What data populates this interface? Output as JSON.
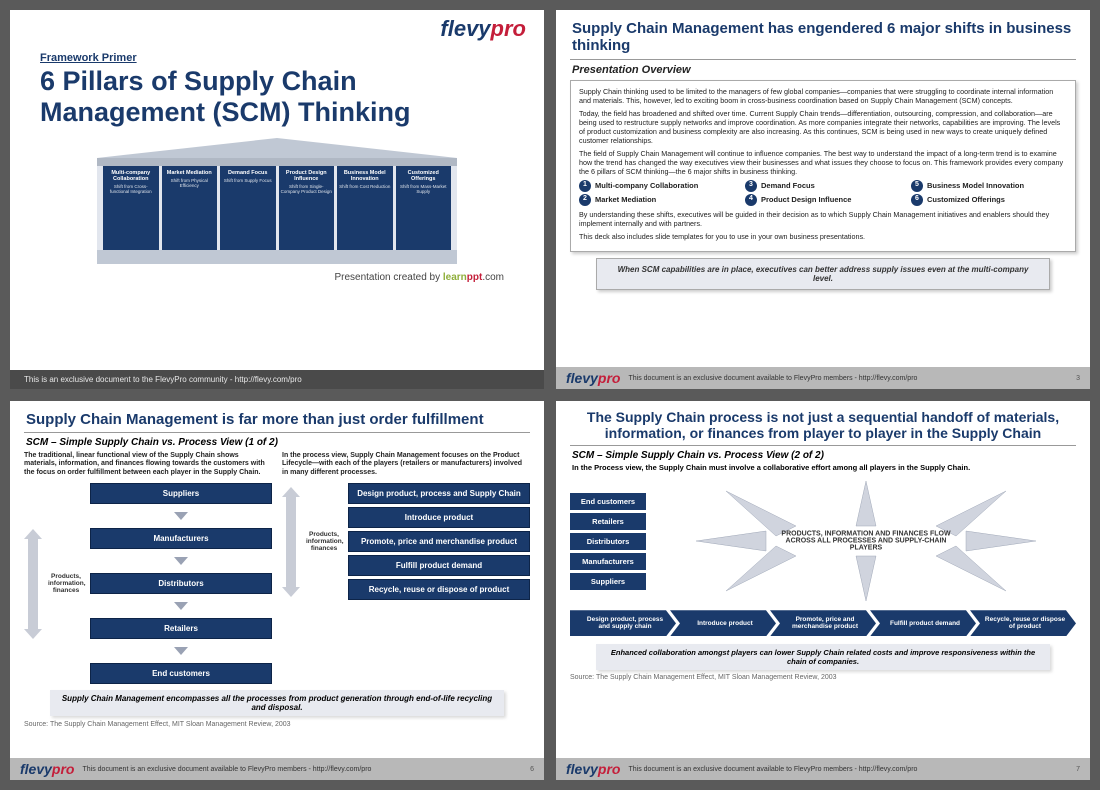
{
  "brand": {
    "flevy": "flevy",
    "pro": "pro",
    "learn": "learn",
    "ppt": "ppt",
    "com": ".com"
  },
  "colors": {
    "navy": "#1a3a6b",
    "red": "#c41e3a",
    "grey": "#5a5a5a",
    "ltgrey": "#c0c8d4",
    "callout": "#e8eaf0"
  },
  "slide1": {
    "primer": "Framework Primer",
    "title": "6 Pillars of Supply Chain Management (SCM) Thinking",
    "pillars": [
      {
        "t": "Multi-company Collaboration",
        "s": "Shift from Cross-functional Integration"
      },
      {
        "t": "Market Mediation",
        "s": "Shift from Physical Efficiency"
      },
      {
        "t": "Demand Focus",
        "s": "Shift from Supply Focus"
      },
      {
        "t": "Product Design Influence",
        "s": "Shift from Single-Company Product Design"
      },
      {
        "t": "Business Model Innovation",
        "s": "Shift from Cost Reduction"
      },
      {
        "t": "Customized Offerings",
        "s": "Shift from Mass-Market Supply"
      }
    ],
    "credit_pre": "Presentation created by ",
    "footer": "This is an exclusive document to the FlevyPro community - http://flevy.com/pro"
  },
  "slide2": {
    "title": "Supply Chain Management has engendered 6 major shifts in business thinking",
    "subtitle": "Presentation Overview",
    "p1": "Supply Chain thinking used to be limited to the managers of few global companies—companies that were struggling to coordinate internal information and materials.  This, however, led to exciting boom in cross-business coordination based on Supply Chain Management (SCM) concepts.",
    "p2": "Today, the field has broadened and shifted over time. Current Supply Chain trends—differentiation, outsourcing, compression, and collaboration—are being used to restructure supply networks and improve coordination.  As more companies integrate their networks, capabilities are improving. The levels of product customization and business complexity are also increasing.  As this continues, SCM is being used in new ways to create uniquely defined customer relationships.",
    "p3": "The field of Supply Chain Management will continue to influence companies. The best way to understand the impact of a long-term trend is to examine how the trend has changed the way executives view their businesses and what issues they choose to focus on.   This framework provides every company the 6 pillars of SCM thinking—the 6 major shifts in business thinking.",
    "list": [
      "Multi-company Collaboration",
      "Market Mediation",
      "Demand Focus",
      "Product Design Influence",
      "Business Model Innovation",
      "Customized Offerings"
    ],
    "p4": "By understanding these shifts, executives will be guided in their decision as to which Supply Chain Management initiatives and enablers should they implement internally and with partners.",
    "p5": "This deck also includes slide templates for you to use in your own business presentations.",
    "callout": "When SCM capabilities are in place, executives can better address supply issues even at the multi-company level.",
    "footer": "This document is an exclusive document available to FlevyPro members - http://flevy.com/pro",
    "page": "3"
  },
  "slide3": {
    "title": "Supply Chain Management is far more than just order fulfillment",
    "subtitle": "SCM – Simple Supply Chain vs. Process View (1 of 2)",
    "left_desc": "The traditional, linear functional view of the Supply Chain shows materials, information, and finances flowing towards the customers with the focus on order fulfillment between each player in the Supply Chain.",
    "right_desc": "In the process view, Supply Chain Management focuses on the Product Lifecycle—with each of the players (retailers or manufacturers) involved in many different processes.",
    "side_label": "Products, information, finances",
    "left_boxes": [
      "Suppliers",
      "Manufacturers",
      "Distributors",
      "Retailers",
      "End customers"
    ],
    "right_boxes": [
      "Design product, process and Supply Chain",
      "Introduce product",
      "Promote, price and merchandise product",
      "Fulfill product demand",
      "Recycle, reuse or dispose of product"
    ],
    "callout": "Supply Chain Management encompasses all the processes from product generation through end-of-life recycling and disposal.",
    "source": "Source: The Supply Chain Management Effect, MIT Sloan Management Review, 2003",
    "footer": "This document is an exclusive document available to FlevyPro members - http://flevy.com/pro",
    "page": "6"
  },
  "slide4": {
    "title": "The Supply Chain process is not just a sequential handoff of materials, information, or finances from player to player in the Supply Chain",
    "subtitle": "SCM – Simple Supply Chain vs. Process View (2 of 2)",
    "desc": "In the Process view, the Supply Chain must involve a collaborative effort among all players in the Supply Chain.",
    "left": [
      "End customers",
      "Retailers",
      "Distributors",
      "Manufacturers",
      "Suppliers"
    ],
    "center": "PRODUCTS, INFORMATION AND FINANCES FLOW ACROSS ALL PROCESSES AND SUPPLY-CHAIN PLAYERS",
    "chevrons": [
      "Design product, process and supply chain",
      "Introduce product",
      "Promote, price and merchandise product",
      "Fulfill product demand",
      "Recycle, reuse or dispose of product"
    ],
    "callout": "Enhanced collaboration amongst players can lower Supply Chain related costs and improve responsiveness within the chain of companies.",
    "source": "Source: The Supply Chain Management Effect, MIT Sloan Management Review, 2003",
    "footer": "This document is an exclusive document available to FlevyPro members - http://flevy.com/pro",
    "page": "7"
  }
}
